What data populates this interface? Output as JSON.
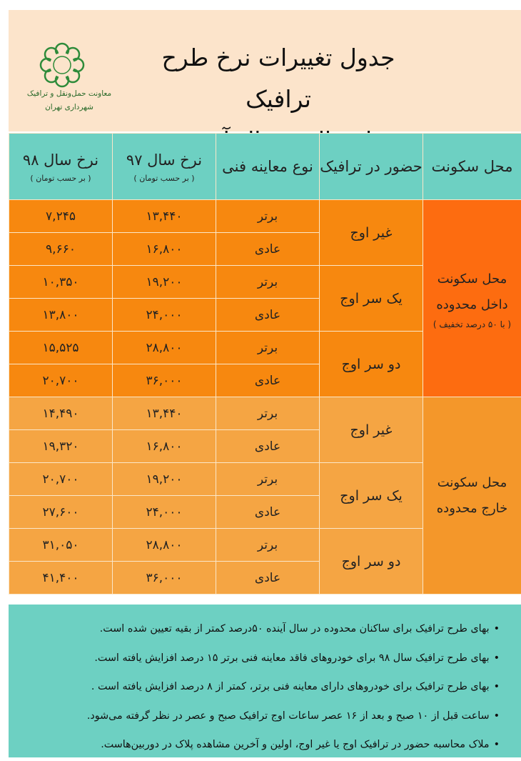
{
  "header": {
    "title_line1": "جدول تغییرات نرخ طرح ترافیک",
    "title_line2": "امسال و سال آینده",
    "logo_text_line1": "معاونت حمل‌ونقل و ترافیک",
    "logo_text_line2": "شهرداری تهران",
    "logo_icon": "tehran-municipality-logo"
  },
  "columns": [
    {
      "label": "محل سکونت"
    },
    {
      "label": "حضور در ترافیک"
    },
    {
      "label": "نوع معاینه فنی"
    },
    {
      "label": "نرخ سال ۹۷",
      "sub": "( بر حسب تومان )"
    },
    {
      "label": "نرخ سال ۹۸",
      "sub": "( بر حسب تومان )"
    }
  ],
  "sections": [
    {
      "location": "محل سکونت داخل محدوده",
      "location_note": "( با ۵۰ درصد تخفیف )",
      "color": "#f7880f",
      "groups": [
        {
          "presence": "غیر اوج",
          "rows": [
            {
              "type": "برتر",
              "rate97": "۱۳,۴۴۰",
              "rate98": "۷,۲۴۵"
            },
            {
              "type": "عادی",
              "rate97": "۱۶,۸۰۰",
              "rate98": "۹,۶۶۰"
            }
          ]
        },
        {
          "presence": "یک سر اوج",
          "rows": [
            {
              "type": "برتر",
              "rate97": "۱۹,۲۰۰",
              "rate98": "۱۰,۳۵۰"
            },
            {
              "type": "عادی",
              "rate97": "۲۴,۰۰۰",
              "rate98": "۱۳,۸۰۰"
            }
          ]
        },
        {
          "presence": "دو سر اوج",
          "rows": [
            {
              "type": "برتر",
              "rate97": "۲۸,۸۰۰",
              "rate98": "۱۵,۵۲۵"
            },
            {
              "type": "عادی",
              "rate97": "۳۶,۰۰۰",
              "rate98": "۲۰,۷۰۰"
            }
          ]
        }
      ]
    },
    {
      "location": "محل سکونت خارج محدوده",
      "color": "#f5a543",
      "groups": [
        {
          "presence": "غیر اوج",
          "rows": [
            {
              "type": "برتر",
              "rate97": "۱۳,۴۴۰",
              "rate98": "۱۴,۴۹۰"
            },
            {
              "type": "عادی",
              "rate97": "۱۶,۸۰۰",
              "rate98": "۱۹,۳۲۰"
            }
          ]
        },
        {
          "presence": "یک سر اوج",
          "rows": [
            {
              "type": "برتر",
              "rate97": "۱۹,۲۰۰",
              "rate98": "۲۰,۷۰۰"
            },
            {
              "type": "عادی",
              "rate97": "۲۴,۰۰۰",
              "rate98": "۲۷,۶۰۰"
            }
          ]
        },
        {
          "presence": "دو سر اوج",
          "rows": [
            {
              "type": "برتر",
              "rate97": "۲۸,۸۰۰",
              "rate98": "۳۱,۰۵۰"
            },
            {
              "type": "عادی",
              "rate97": "۳۶,۰۰۰",
              "rate98": "۴۱,۴۰۰"
            }
          ]
        }
      ]
    }
  ],
  "notes": [
    "بهای طرح ترافیک برای ساکنان محدوده در سال آینده ۵۰درصد کمتر از بقیه تعیین شده است.",
    "بهای طرح ترافیک سال ۹۸ برای خودروهای فاقد معاینه فنی برتر ۱۵ درصد افزایش یافته است.",
    "بهای طرح ترافیک برای خودروهای دارای معاینه فنی برتر، کمتر از ۸ درصد افزایش یافته است .",
    "ساعت قبل از ۱۰ صبح و بعد از ۱۶ عصر ساعات اوج ترافیک صبح و عصر در نظر گرفته می‌شود.",
    "ملاک محاسبه حضور در ترافیک اوج یا غیر اوج، اولین و آخرین مشاهده پلاک در دوربین‌هاست."
  ]
}
